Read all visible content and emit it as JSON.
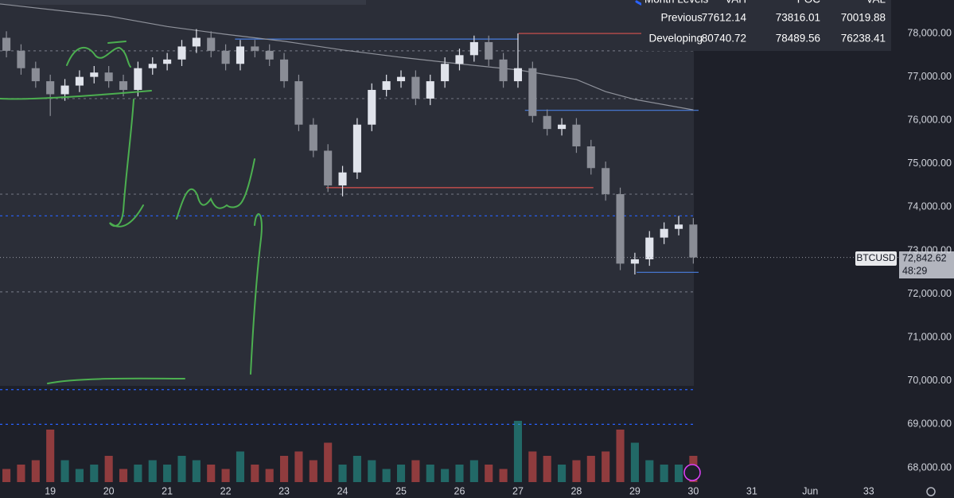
{
  "chart_data": {
    "type": "candlestick",
    "symbol": "BTCUSD",
    "current_price_label": "72,842.62",
    "countdown": "48:29",
    "up_color": "#e0e3eb",
    "down_color": "#8a8d96",
    "volume_up_color": "#26a69a",
    "volume_down_color": "#ef5350",
    "xlim": [
      18.14,
      33.52
    ],
    "ylim": [
      67670,
      78770
    ],
    "xticks": [
      19,
      20,
      21,
      22,
      23,
      24,
      25,
      26,
      27,
      28,
      29,
      30,
      31,
      {
        "value": 32,
        "label": "Jun"
      },
      33
    ],
    "yticks": [
      {
        "value": 68000,
        "label": "68,000.00"
      },
      {
        "value": 69000,
        "label": "69,000.00"
      },
      {
        "value": 70000,
        "label": "70,000.00"
      },
      {
        "value": 71000,
        "label": "71,000.00"
      },
      {
        "value": 72000,
        "label": "72,000.00"
      },
      {
        "value": 73000,
        "label": "73,000.00"
      },
      {
        "value": 74000,
        "label": "74,000.00"
      },
      {
        "value": 75000,
        "label": "75,000.00"
      },
      {
        "value": 76000,
        "label": "76,000.00"
      },
      {
        "value": 77000,
        "label": "77,000.00"
      },
      {
        "value": 78000,
        "label": "78,000.00"
      }
    ],
    "x": [
      18.25,
      18.5,
      18.75,
      19,
      19.25,
      19.5,
      19.75,
      20,
      20.25,
      20.5,
      20.75,
      21,
      21.25,
      21.5,
      21.75,
      22,
      22.25,
      22.5,
      22.75,
      23,
      23.25,
      23.5,
      23.75,
      24,
      24.25,
      24.5,
      24.75,
      25,
      25.25,
      25.5,
      25.75,
      26,
      26.25,
      26.5,
      26.75,
      27,
      27.25,
      27.5,
      27.75,
      28,
      28.25,
      28.5,
      28.75,
      29,
      29.25,
      29.5,
      29.75,
      30
    ],
    "open": [
      77900,
      77600,
      77200,
      76900,
      76600,
      76800,
      77000,
      77100,
      76900,
      76700,
      77200,
      77300,
      77400,
      77700,
      77900,
      77600,
      77300,
      77700,
      77600,
      77400,
      76900,
      75900,
      75300,
      74500,
      74800,
      75900,
      76700,
      76900,
      77000,
      76500,
      76900,
      77300,
      77500,
      77800,
      77400,
      76900,
      77200,
      76100,
      75800,
      75900,
      75400,
      74900,
      74300,
      72700,
      72800,
      73300,
      73500,
      73600
    ],
    "high": [
      78050,
      77750,
      77350,
      77050,
      76950,
      77150,
      77250,
      77250,
      77050,
      77350,
      77450,
      77550,
      77850,
      78100,
      78050,
      77750,
      77850,
      77850,
      77750,
      77550,
      77050,
      76050,
      75450,
      74950,
      76050,
      76850,
      77050,
      77150,
      77150,
      77050,
      77450,
      77650,
      77950,
      77950,
      77550,
      78000,
      77350,
      76250,
      76050,
      76050,
      75550,
      75050,
      74450,
      72950,
      73450,
      73650,
      73800,
      73750
    ],
    "low": [
      77450,
      77050,
      76750,
      76100,
      76450,
      76650,
      76850,
      76750,
      76550,
      76550,
      77050,
      77150,
      77250,
      77550,
      77450,
      77150,
      77150,
      77450,
      77250,
      76750,
      75750,
      75150,
      74350,
      74250,
      74650,
      75750,
      76550,
      76750,
      76350,
      76350,
      76750,
      77150,
      77350,
      77250,
      76750,
      76750,
      75950,
      75650,
      75650,
      75250,
      74750,
      74150,
      72550,
      72450,
      72650,
      73150,
      73350,
      72700
    ],
    "close": [
      77600,
      77200,
      76900,
      76600,
      76800,
      77000,
      77100,
      76900,
      76700,
      77200,
      77300,
      77400,
      77700,
      77900,
      77600,
      77300,
      77700,
      77600,
      77400,
      76900,
      75900,
      75300,
      74500,
      74800,
      75900,
      76700,
      76900,
      77000,
      76500,
      76900,
      77300,
      77500,
      77800,
      77400,
      76900,
      77200,
      76100,
      75800,
      75900,
      75400,
      74900,
      74300,
      72700,
      72800,
      73300,
      73500,
      73600,
      72842.62
    ],
    "volume": [
      3,
      4,
      5,
      12,
      5,
      3,
      4,
      6,
      3,
      4,
      5,
      4,
      6,
      5,
      4,
      3,
      7,
      4,
      3,
      6,
      7,
      5,
      9,
      4,
      6,
      5,
      3,
      4,
      5,
      4,
      3,
      4,
      5,
      4,
      3,
      14,
      7,
      6,
      4,
      5,
      6,
      7,
      12,
      9,
      5,
      4,
      4,
      6
    ],
    "moving_average": {
      "color": "#8f929b",
      "x": [
        18.14,
        20,
        21,
        22,
        23,
        24,
        25,
        26,
        27,
        28,
        28.5,
        29,
        30
      ],
      "values": [
        78680,
        78400,
        78160,
        77980,
        77820,
        77620,
        77450,
        77300,
        77160,
        76940,
        76660,
        76480,
        76240
      ]
    },
    "levels": [
      {
        "value": 77600,
        "color": "#6b6f7a"
      },
      {
        "value": 76500,
        "color": "#6b6f7a"
      },
      {
        "value": 74300,
        "color": "#6b6f7a"
      },
      {
        "value": 72050,
        "color": "#6b6f7a"
      },
      {
        "value": 73800,
        "color": "#2962ff"
      },
      {
        "value": 69800,
        "color": "#2962ff"
      },
      {
        "value": 69000,
        "color": "#2962ff"
      }
    ],
    "segments": [
      {
        "value": 77870,
        "x": [
          22.16,
          27.01
        ],
        "color": "#4a7fe0"
      },
      {
        "value": 78000,
        "x": [
          27.01,
          29.14
        ],
        "color": "#d9534f"
      },
      {
        "value": 76230,
        "x": [
          27.12,
          30.09
        ],
        "color": "#4a7fe0"
      },
      {
        "value": 74450,
        "x": [
          23.72,
          28.29
        ],
        "color": "#d9534f"
      },
      {
        "value": 72500,
        "x": [
          29.03,
          30.09
        ],
        "color": "#4a7fe0"
      }
    ]
  },
  "table": {
    "columns": [
      "Month Levels",
      "VAH",
      "POC",
      "VAL"
    ],
    "rows": [
      [
        "Previous",
        77612.14,
        73816.01,
        70019.88
      ],
      [
        "Developing",
        80740.72,
        78489.56,
        76238.41
      ]
    ]
  }
}
